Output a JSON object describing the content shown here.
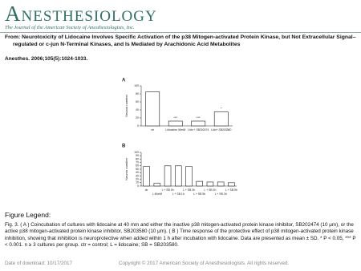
{
  "header": {
    "logo": "Anesthesiology",
    "tagline": "The Journal of the American Society of Anesthesiologists, Inc."
  },
  "article": {
    "from": "From: Neurotoxicity of Lidocaine Involves Specific Activation of the p38 Mitogen-activated Protein Kinase, but Not Extracellular Signal–regulated or c-jun N-Terminal Kinases, and Is Mediated by Arachidonic Acid Metabolites",
    "citation": "Anesthes. 2006;105(5):1024-1033."
  },
  "figure": {
    "panels": [
      {
        "type": "bar",
        "label": "A",
        "ylabel": "Neuron number",
        "categories": [
          "ctr",
          "Lidocaine 40mM",
          "Lido + SB202474",
          "Lido+ SB203580"
        ],
        "values": [
          85,
          12,
          12,
          35
        ],
        "bar_labels": [
          null,
          "***",
          "***",
          "*"
        ],
        "ylim": [
          0,
          100
        ],
        "yticks": [
          0,
          20,
          40,
          60,
          80,
          100
        ],
        "color": "#ffffff"
      },
      {
        "type": "bar",
        "label": "B",
        "ylabel": "Neuron number",
        "categories": [
          "ctr",
          "L 40mM",
          "L + SB 0h",
          "L + SB 1h",
          "L + SB 3h",
          "L + SB 5h",
          "L + SB 1h",
          "L + SB 3h",
          "L + SB 5h"
        ],
        "values": [
          58,
          8,
          60,
          60,
          58,
          14,
          12,
          12,
          10
        ],
        "bar_labels": [
          null,
          null,
          null,
          null,
          null,
          null,
          null,
          null,
          null
        ],
        "ylim": [
          0,
          100
        ],
        "yticks": [
          0,
          10,
          20,
          30,
          40,
          50,
          60,
          70,
          80,
          90,
          100
        ],
        "color": "#ffffff"
      }
    ]
  },
  "legend": {
    "heading": "Figure Legend:",
    "text": "Fig. 3. ( A ) Coincubation of cultures with lidocaine at 40 mm and either the inactive p38 mitogen-activated protein kinase inhibitor, SB202474 (10 μm), or the active p38 mitogen-activated protein kinase inhibitor, SB203580 (10 μm). ( B ) Time response of the protective effect of p38 mitogen-activated protein kinase inhibition, showing that inhibition is neuroprotective when added within 1 h after incubation with lidocaine. Data are presented as mean ± SD. * P < 0.05, *** P < 0.001. n ≥ 3 cultures per group. ctr = control; L = lidocaine; SB = SB203580."
  },
  "footer": {
    "date": "Date of download:  10/17/2017",
    "copyright": "Copyright © 2017 American Society of Anesthesiologists. All rights reserved."
  }
}
